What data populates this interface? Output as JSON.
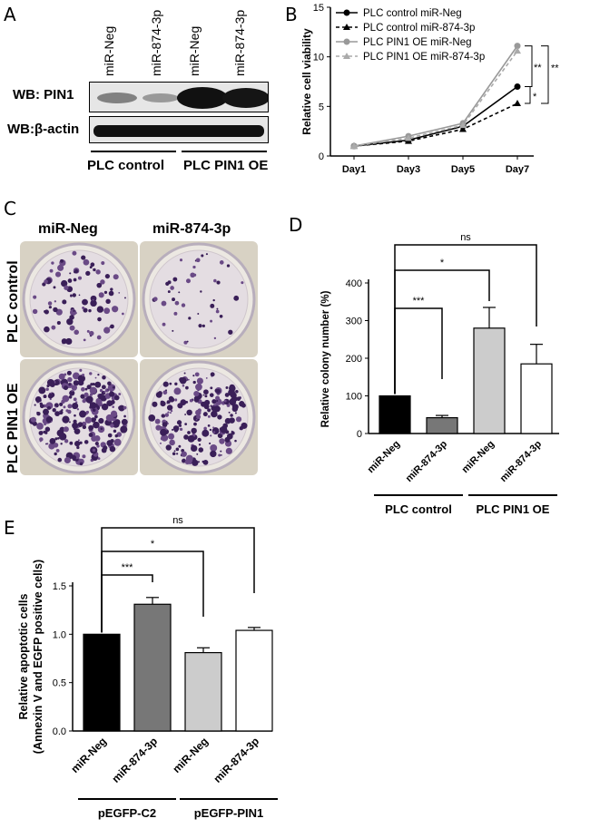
{
  "panels": {
    "a": "A",
    "b": "B",
    "c": "C",
    "d": "D",
    "e": "E"
  },
  "panelA": {
    "lanes": [
      "miR-Neg",
      "miR-874-3p",
      "miR-Neg",
      "miR-874-3p"
    ],
    "row1": "WB: PIN1",
    "row2": "WB:β-actin",
    "group1": "PLC control",
    "group2": "PLC PIN1 OE"
  },
  "panelC": {
    "col1": "miR-Neg",
    "col2": "miR-874-3p",
    "row1": "PLC control",
    "row2": "PLC PIN1 OE"
  },
  "chart_data": [
    {
      "panel": "B",
      "type": "line",
      "categories": [
        "Day1",
        "Day3",
        "Day5",
        "Day7"
      ],
      "ylabel": "Relative cell viability",
      "ylim": [
        0,
        15
      ],
      "yticks": [
        "0",
        "5",
        "10",
        "15"
      ],
      "series": [
        {
          "name": "PLC control miR-Neg",
          "values": [
            1.0,
            1.6,
            3.0,
            7.0
          ],
          "color": "#000000",
          "dash": false,
          "marker": "circle"
        },
        {
          "name": "PLC control miR-874-3p",
          "values": [
            1.0,
            1.5,
            2.7,
            5.3
          ],
          "color": "#000000",
          "dash": true,
          "marker": "triangle"
        },
        {
          "name": "PLC PIN1 OE miR-Neg",
          "values": [
            1.0,
            2.0,
            3.3,
            11.1
          ],
          "color": "#999999",
          "dash": false,
          "marker": "circle"
        },
        {
          "name": "PLC PIN1 OE miR-874-3p",
          "values": [
            1.0,
            1.8,
            3.1,
            10.6
          ],
          "color": "#aaaaaa",
          "dash": true,
          "marker": "triangle"
        }
      ],
      "annotations": [
        "*",
        "**",
        "**"
      ]
    },
    {
      "panel": "D",
      "type": "bar",
      "categories": [
        "miR-Neg",
        "miR-874-3p",
        "miR-Neg",
        "miR-874-3p"
      ],
      "values": [
        100,
        42,
        280,
        185
      ],
      "errors": [
        0,
        6,
        55,
        52
      ],
      "colors": [
        "#000000",
        "#777777",
        "#cccccc",
        "#ffffff"
      ],
      "ylabel": "Relative colony number (%)",
      "ylim": [
        0,
        400
      ],
      "yticks": [
        "0",
        "100",
        "200",
        "300",
        "400"
      ],
      "groups": [
        "PLC control",
        "PLC PIN1 OE"
      ],
      "annotations": [
        "***",
        "*",
        "ns"
      ]
    },
    {
      "panel": "E",
      "type": "bar",
      "categories": [
        "miR-Neg",
        "miR-874-3p",
        "miR-Neg",
        "miR-874-3p"
      ],
      "values": [
        1.0,
        1.31,
        0.81,
        1.04
      ],
      "errors": [
        0,
        0.07,
        0.05,
        0.03
      ],
      "colors": [
        "#000000",
        "#777777",
        "#cccccc",
        "#ffffff"
      ],
      "ylabel_line1": "Relative apoptotic cells",
      "ylabel_line2": "(Annexin V and EGFP positive cells)",
      "ylim": [
        0,
        1.5
      ],
      "yticks": [
        "0.0",
        "0.5",
        "1.0",
        "1.5"
      ],
      "groups": [
        "pEGFP-C2",
        "pEGFP-PIN1"
      ],
      "annotations": [
        "***",
        "*",
        "ns"
      ]
    }
  ]
}
